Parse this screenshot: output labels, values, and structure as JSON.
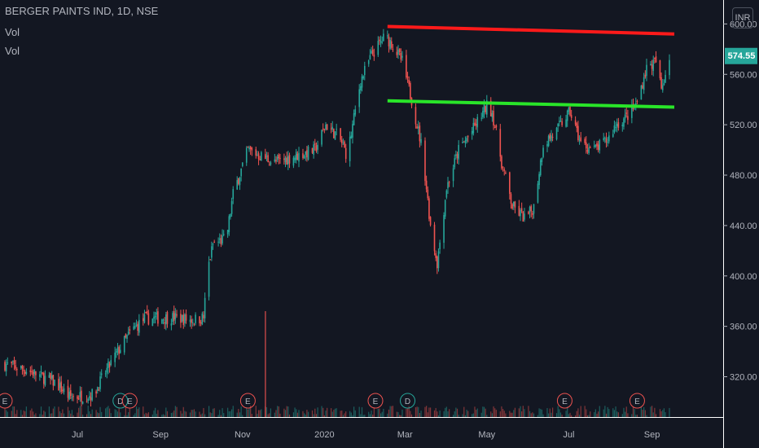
{
  "header": {
    "symbol_line": "BERGER PAINTS IND, 1D, NSE",
    "vol_label_1": "Vol",
    "vol_label_2": "Vol"
  },
  "currency_button": "INR",
  "last_price": {
    "label": "574.55",
    "value": 574.55,
    "color": "#26a69a"
  },
  "colors": {
    "up": "#26a69a",
    "down": "#ef5350",
    "resistance": "#ff1a1a",
    "support": "#29e529",
    "background": "#131722",
    "axis": "#b2b5be"
  },
  "chart_data": {
    "type": "candlestick",
    "y_axis": {
      "ticks": [
        320,
        360,
        400,
        440,
        480,
        520,
        560,
        600
      ],
      "tick_labels": [
        "320.00",
        "360.00",
        "400.00",
        "440.00",
        "480.00",
        "520.00",
        "560.00",
        "600.00"
      ],
      "range": [
        288,
        619
      ]
    },
    "x_axis": {
      "tick_labels": [
        "Jul",
        "Sep",
        "Nov",
        "2020",
        "Mar",
        "May",
        "Jul",
        "Sep"
      ],
      "tick_dates": [
        "2019-07-01",
        "2019-09-01",
        "2019-11-01",
        "2020-01-01",
        "2020-03-01",
        "2020-05-01",
        "2020-07-01",
        "2020-09-01"
      ],
      "range": [
        "2019-05-08",
        "2020-09-14"
      ]
    },
    "close_path": [
      [
        "2019-05-08",
        330
      ],
      [
        "2019-05-25",
        325
      ],
      [
        "2019-06-15",
        315
      ],
      [
        "2019-06-25",
        304
      ],
      [
        "2019-07-07",
        305
      ],
      [
        "2019-07-13",
        306
      ],
      [
        "2019-07-20",
        320
      ],
      [
        "2019-07-30",
        338
      ],
      [
        "2019-08-10",
        356
      ],
      [
        "2019-08-20",
        366
      ],
      [
        "2019-09-10",
        367
      ],
      [
        "2019-09-25",
        365
      ],
      [
        "2019-10-03",
        367
      ],
      [
        "2019-10-06",
        405
      ],
      [
        "2019-10-10",
        425
      ],
      [
        "2019-10-20",
        430
      ],
      [
        "2019-10-25",
        465
      ],
      [
        "2019-11-05",
        500
      ],
      [
        "2019-11-15",
        495
      ],
      [
        "2019-11-25",
        490
      ],
      [
        "2019-12-10",
        495
      ],
      [
        "2019-12-25",
        500
      ],
      [
        "2020-01-02",
        520
      ],
      [
        "2020-01-12",
        510
      ],
      [
        "2020-01-18",
        495
      ],
      [
        "2020-01-28",
        555
      ],
      [
        "2020-02-05",
        575
      ],
      [
        "2020-02-15",
        590
      ],
      [
        "2020-02-20",
        585
      ],
      [
        "2020-02-28",
        570
      ],
      [
        "2020-03-06",
        540
      ],
      [
        "2020-03-14",
        500
      ],
      [
        "2020-03-20",
        440
      ],
      [
        "2020-03-25",
        410
      ],
      [
        "2020-04-01",
        470
      ],
      [
        "2020-04-10",
        500
      ],
      [
        "2020-04-20",
        515
      ],
      [
        "2020-05-01",
        535
      ],
      [
        "2020-05-05",
        530
      ],
      [
        "2020-05-12",
        490
      ],
      [
        "2020-05-20",
        455
      ],
      [
        "2020-05-30",
        445
      ],
      [
        "2020-06-05",
        455
      ],
      [
        "2020-06-12",
        505
      ],
      [
        "2020-06-22",
        515
      ],
      [
        "2020-06-28",
        525
      ],
      [
        "2020-07-02",
        530
      ],
      [
        "2020-07-10",
        505
      ],
      [
        "2020-07-20",
        500
      ],
      [
        "2020-07-30",
        508
      ],
      [
        "2020-08-05",
        520
      ],
      [
        "2020-08-12",
        525
      ],
      [
        "2020-08-20",
        535
      ],
      [
        "2020-08-28",
        565
      ],
      [
        "2020-09-04",
        570
      ],
      [
        "2020-09-08",
        548
      ],
      [
        "2020-09-14",
        574.55
      ]
    ],
    "resistance_line": {
      "from": [
        "2020-02-17",
        598
      ],
      "to": [
        "2020-09-14",
        592
      ],
      "color": "#ff1a1a"
    },
    "support_line": {
      "from": [
        "2020-02-17",
        539
      ],
      "to": [
        "2020-09-14",
        534
      ],
      "color": "#29e529"
    },
    "volume": {
      "spike_date": "2019-11-18"
    },
    "events": [
      {
        "date": "2019-05-08",
        "label": "E",
        "kind": "earnings"
      },
      {
        "date": "2019-08-02",
        "label": "D",
        "kind": "dividend"
      },
      {
        "date": "2019-08-09",
        "label": "E",
        "kind": "earnings"
      },
      {
        "date": "2019-11-05",
        "label": "E",
        "kind": "earnings"
      },
      {
        "date": "2020-02-08",
        "label": "E",
        "kind": "earnings"
      },
      {
        "date": "2020-03-03",
        "label": "D",
        "kind": "dividend"
      },
      {
        "date": "2020-06-28",
        "label": "E",
        "kind": "earnings"
      },
      {
        "date": "2020-08-21",
        "label": "E",
        "kind": "earnings"
      }
    ]
  }
}
